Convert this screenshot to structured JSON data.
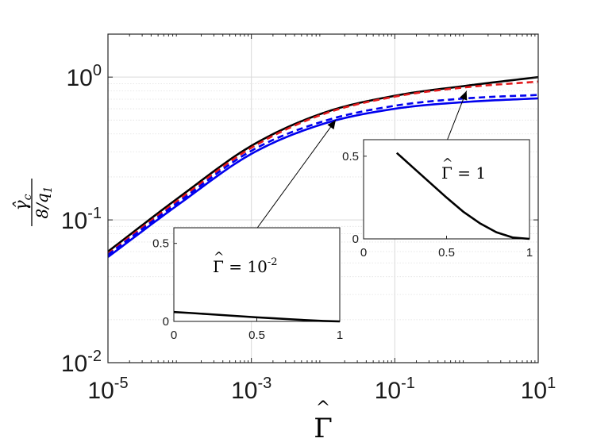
{
  "chart_data": [
    {
      "type": "line",
      "role": "main",
      "xscale": "log",
      "yscale": "log",
      "xlim": [
        1e-05,
        10
      ],
      "ylim": [
        0.01,
        2
      ],
      "xticks": [
        1e-05,
        0.001,
        0.1,
        10
      ],
      "yticks": [
        0.01,
        0.1,
        1
      ],
      "xtick_labels": [
        {
          "base": "10",
          "exp": "-5"
        },
        {
          "base": "10",
          "exp": "-3"
        },
        {
          "base": "10",
          "exp": "-1"
        },
        {
          "base": "10",
          "exp": "1"
        }
      ],
      "ytick_labels": [
        {
          "base": "10",
          "exp": "-2"
        },
        {
          "base": "10",
          "exp": "-1"
        },
        {
          "base": "10",
          "exp": "0"
        }
      ],
      "xlabel": {
        "symbol": "Γ",
        "hat": "^"
      },
      "ylabel": {
        "numerator": "γ̂",
        "numerator_sub": "c",
        "denominator": "8/q",
        "denominator_sub": "1"
      },
      "grid": true,
      "minor_grid": true,
      "series": [
        {
          "color": "#000000",
          "style": "solid",
          "x": [
            1e-05,
            0.0001,
            0.001,
            0.01,
            0.1,
            1,
            10
          ],
          "y": [
            0.06,
            0.145,
            0.33,
            0.56,
            0.74,
            0.87,
            1.0
          ]
        },
        {
          "color": "#e41a1c",
          "style": "dashed",
          "x": [
            1e-05,
            0.0001,
            0.001,
            0.01,
            0.1,
            1,
            10
          ],
          "y": [
            0.058,
            0.14,
            0.32,
            0.55,
            0.73,
            0.85,
            0.93
          ]
        },
        {
          "color": "#0000ee",
          "style": "dashed",
          "x": [
            1e-05,
            0.0001,
            0.001,
            0.01,
            0.1,
            1,
            10
          ],
          "y": [
            0.057,
            0.135,
            0.305,
            0.49,
            0.63,
            0.71,
            0.75
          ]
        },
        {
          "color": "#0000ee",
          "style": "solid",
          "x": [
            1e-05,
            0.0001,
            0.001,
            0.01,
            0.1,
            1,
            10
          ],
          "y": [
            0.055,
            0.13,
            0.29,
            0.47,
            0.6,
            0.67,
            0.71
          ]
        }
      ],
      "annotations": [
        {
          "text_base": "Γ",
          "text_suffix": " = 10",
          "text_exp": "-2",
          "points_to": {
            "x": 0.015,
            "y": 0.5
          }
        },
        {
          "text_base": "Γ",
          "text_suffix": " = 1",
          "text_exp": "",
          "points_to": {
            "x": 1.0,
            "y": 0.8
          }
        }
      ]
    },
    {
      "type": "line",
      "role": "inset",
      "label": {
        "base": "Γ",
        "suffix": " = 10",
        "exp": "-2"
      },
      "xlim": [
        0,
        1
      ],
      "ylim": [
        0,
        0.6
      ],
      "xticks": [
        0,
        0.5,
        1
      ],
      "yticks": [
        0,
        0.5
      ],
      "xtick_labels": [
        "0",
        "0.5",
        "1"
      ],
      "ytick_labels": [
        "0",
        "0.5"
      ],
      "series": [
        {
          "color": "#000000",
          "x": [
            0,
            0.1,
            0.2,
            0.3,
            0.4,
            0.5,
            0.6,
            0.7,
            0.8,
            0.9,
            1.0
          ],
          "y": [
            0.06,
            0.054,
            0.047,
            0.04,
            0.033,
            0.026,
            0.02,
            0.014,
            0.008,
            0.003,
            0.0
          ]
        }
      ]
    },
    {
      "type": "line",
      "role": "inset",
      "label": {
        "base": "Γ",
        "suffix": " = 1",
        "exp": ""
      },
      "xlim": [
        0,
        1
      ],
      "ylim": [
        0,
        0.6
      ],
      "xticks": [
        0,
        0.5,
        1
      ],
      "yticks": [
        0,
        0.5
      ],
      "xtick_labels": [
        "0",
        "0.5",
        "1"
      ],
      "ytick_labels": [
        "0",
        "0.5"
      ],
      "series": [
        {
          "color": "#000000",
          "x": [
            0.2,
            0.3,
            0.4,
            0.5,
            0.6,
            0.7,
            0.8,
            0.9,
            1.0
          ],
          "y": [
            0.52,
            0.43,
            0.34,
            0.25,
            0.165,
            0.095,
            0.04,
            0.008,
            0.0
          ]
        }
      ]
    }
  ]
}
